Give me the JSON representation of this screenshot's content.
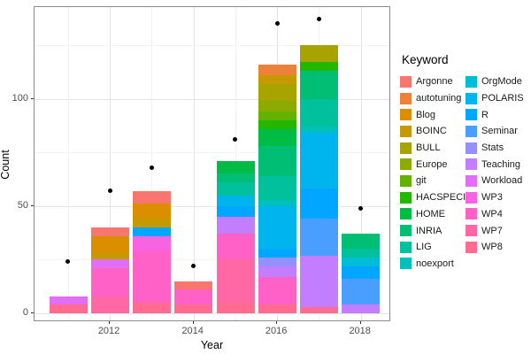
{
  "chart_data": {
    "type": "bar",
    "stacked": true,
    "points_overlay": true,
    "title": "",
    "xlabel": "Year",
    "ylabel": "Count",
    "legend_title": "Keyword",
    "legend_position": "right",
    "grid": true,
    "stack_order": "first_keyword_on_top",
    "categories": [
      2011,
      2012,
      2013,
      2014,
      2015,
      2016,
      2017,
      2018
    ],
    "x_tick_years": [
      2012,
      2014,
      2016,
      2018
    ],
    "x_tick_labels": [
      "2012",
      "2014",
      "2016",
      "2018"
    ],
    "y_ticks": [
      0,
      50,
      100
    ],
    "y_tick_labels": [
      "0",
      "50",
      "100"
    ],
    "y_minor_ticks": [
      25,
      75,
      125
    ],
    "ylim": [
      0,
      142
    ],
    "keywords": [
      {
        "name": "Argonne",
        "color": "#F8766D",
        "values": [
          0,
          4,
          6,
          4,
          0,
          0,
          0,
          0
        ]
      },
      {
        "name": "autotuning",
        "color": "#EC8239",
        "values": [
          0,
          0,
          0,
          0,
          0,
          5,
          0,
          0
        ]
      },
      {
        "name": "Blog",
        "color": "#DB8E00",
        "values": [
          0,
          8,
          7,
          0,
          0,
          0,
          0,
          0
        ]
      },
      {
        "name": "BOINC",
        "color": "#C49A00",
        "values": [
          0,
          3,
          4,
          0,
          0,
          4,
          0,
          0
        ]
      },
      {
        "name": "BULL",
        "color": "#A7A400",
        "values": [
          0,
          0,
          0,
          0,
          0,
          8,
          8,
          0
        ]
      },
      {
        "name": "Europe",
        "color": "#8CAB00",
        "values": [
          0,
          0,
          0,
          0,
          0,
          5,
          0,
          0
        ]
      },
      {
        "name": "git",
        "color": "#64B200",
        "values": [
          0,
          0,
          0,
          0,
          0,
          4,
          0,
          0
        ]
      },
      {
        "name": "HACSPECIS",
        "color": "#24B700",
        "values": [
          0,
          0,
          0,
          0,
          0,
          4,
          4,
          0
        ]
      },
      {
        "name": "HOME",
        "color": "#00BB44",
        "values": [
          0,
          0,
          0,
          0,
          6,
          8,
          0,
          0
        ]
      },
      {
        "name": "INRIA",
        "color": "#00BF74",
        "values": [
          0,
          0,
          0,
          0,
          4,
          14,
          13,
          7
        ]
      },
      {
        "name": "LIG",
        "color": "#00C19B",
        "values": [
          0,
          0,
          0,
          0,
          6,
          11,
          13,
          4
        ]
      },
      {
        "name": "noexport",
        "color": "#00C0BE",
        "values": [
          0,
          0,
          0,
          0,
          0,
          3,
          3,
          0
        ]
      },
      {
        "name": "OrgMode",
        "color": "#00BDD8",
        "values": [
          0,
          0,
          0,
          0,
          0,
          0,
          0,
          4
        ]
      },
      {
        "name": "POLARIS",
        "color": "#00B5EE",
        "values": [
          0,
          0,
          0,
          0,
          5,
          20,
          26,
          0
        ]
      },
      {
        "name": "R",
        "color": "#00A6FF",
        "values": [
          0,
          0,
          4,
          0,
          5,
          4,
          14,
          6
        ]
      },
      {
        "name": "Seminar",
        "color": "#4A9EFF",
        "values": [
          0,
          0,
          0,
          0,
          0,
          0,
          17,
          12
        ]
      },
      {
        "name": "Stats",
        "color": "#9590FF",
        "values": [
          0,
          0,
          0,
          0,
          0,
          4,
          0,
          0
        ]
      },
      {
        "name": "Teaching",
        "color": "#C27EFF",
        "values": [
          0,
          0,
          0,
          0,
          8,
          5,
          24,
          4
        ]
      },
      {
        "name": "Workload",
        "color": "#E36EF6",
        "values": [
          4,
          4,
          0,
          0,
          0,
          0,
          0,
          0
        ]
      },
      {
        "name": "WP3",
        "color": "#F763E0",
        "values": [
          0,
          0,
          7,
          0,
          0,
          0,
          0,
          0
        ]
      },
      {
        "name": "WP4",
        "color": "#FF61C7",
        "values": [
          0,
          13,
          24,
          7,
          12,
          13,
          0,
          0
        ]
      },
      {
        "name": "WP7",
        "color": "#FF68A4",
        "values": [
          0,
          8,
          0,
          0,
          20,
          0,
          0,
          0
        ]
      },
      {
        "name": "WP8",
        "color": "#FF6C90",
        "values": [
          4,
          0,
          5,
          4,
          5,
          4,
          3,
          0
        ]
      }
    ],
    "bar_totals": [
      8,
      40,
      57,
      15,
      71,
      116,
      125,
      37
    ],
    "points": {
      "color": "#000000",
      "values": [
        24,
        57,
        68,
        22,
        81,
        135,
        137,
        49
      ]
    },
    "legend_column_split": 12
  }
}
